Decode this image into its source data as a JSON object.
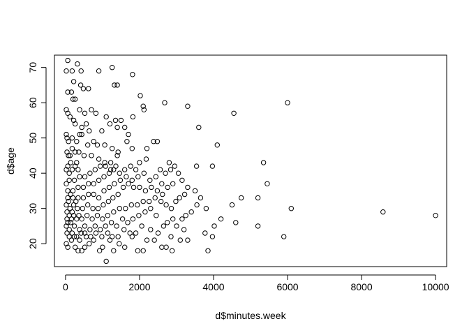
{
  "chart_data": {
    "type": "scatter",
    "title": "",
    "xlabel": "d$minutes.week",
    "ylabel": "d$age",
    "xlim": [
      -300,
      10300
    ],
    "ylim": [
      13.5,
      73.5
    ],
    "xticks": [
      0,
      2000,
      4000,
      6000,
      8000,
      10000
    ],
    "xtick_labels": [
      "0",
      "2000",
      "4000",
      "6000",
      "8000",
      "10000"
    ],
    "yticks": [
      20,
      30,
      40,
      50,
      60,
      70
    ],
    "ytick_labels": [
      "20",
      "30",
      "40",
      "50",
      "60",
      "70"
    ],
    "grid": false,
    "marker": "open-circle",
    "point_color": "#000000",
    "points": [
      [
        60,
        72
      ],
      [
        320,
        71
      ],
      [
        20,
        69
      ],
      [
        180,
        69
      ],
      [
        420,
        69
      ],
      [
        1260,
        70
      ],
      [
        1810,
        68
      ],
      [
        900,
        69
      ],
      [
        220,
        66
      ],
      [
        410,
        65
      ],
      [
        1320,
        65
      ],
      [
        1400,
        65
      ],
      [
        480,
        64
      ],
      [
        620,
        64
      ],
      [
        160,
        63
      ],
      [
        60,
        63
      ],
      [
        200,
        61
      ],
      [
        260,
        61
      ],
      [
        2020,
        62
      ],
      [
        2100,
        59
      ],
      [
        2120,
        58
      ],
      [
        2680,
        60
      ],
      [
        3300,
        59
      ],
      [
        6000,
        60
      ],
      [
        4550,
        57
      ],
      [
        3600,
        53
      ],
      [
        4100,
        48
      ],
      [
        20,
        58
      ],
      [
        60,
        57
      ],
      [
        120,
        56
      ],
      [
        380,
        58
      ],
      [
        520,
        57
      ],
      [
        700,
        58
      ],
      [
        820,
        57
      ],
      [
        1100,
        56
      ],
      [
        1350,
        55
      ],
      [
        1500,
        55
      ],
      [
        1820,
        56
      ],
      [
        220,
        55
      ],
      [
        260,
        54
      ],
      [
        440,
        53
      ],
      [
        560,
        54
      ],
      [
        640,
        52
      ],
      [
        980,
        52
      ],
      [
        1200,
        54
      ],
      [
        1400,
        53
      ],
      [
        1600,
        53
      ],
      [
        1700,
        51
      ],
      [
        20,
        51
      ],
      [
        40,
        50
      ],
      [
        80,
        49
      ],
      [
        180,
        50
      ],
      [
        300,
        49
      ],
      [
        380,
        51
      ],
      [
        440,
        51
      ],
      [
        600,
        48
      ],
      [
        760,
        49
      ],
      [
        860,
        48
      ],
      [
        1060,
        48
      ],
      [
        1420,
        46
      ],
      [
        1660,
        49
      ],
      [
        1800,
        47
      ],
      [
        2380,
        49
      ],
      [
        2480,
        49
      ],
      [
        2200,
        47
      ],
      [
        1260,
        47
      ],
      [
        40,
        46
      ],
      [
        80,
        45
      ],
      [
        120,
        45
      ],
      [
        180,
        47
      ],
      [
        260,
        46
      ],
      [
        360,
        46
      ],
      [
        500,
        45
      ],
      [
        700,
        45
      ],
      [
        900,
        44
      ],
      [
        1060,
        43
      ],
      [
        1220,
        43
      ],
      [
        1400,
        45
      ],
      [
        2000,
        43
      ],
      [
        2180,
        44
      ],
      [
        2800,
        43
      ],
      [
        3540,
        42
      ],
      [
        3970,
        42
      ],
      [
        5350,
        43
      ],
      [
        5450,
        37
      ],
      [
        4500,
        31
      ],
      [
        4750,
        33
      ],
      [
        5200,
        33
      ],
      [
        6100,
        30
      ],
      [
        4600,
        26
      ],
      [
        5200,
        25
      ],
      [
        5900,
        22
      ],
      [
        8580,
        29
      ],
      [
        10000,
        28
      ],
      [
        3850,
        18
      ],
      [
        3970,
        22
      ],
      [
        3770,
        23
      ],
      [
        4020,
        25
      ],
      [
        4200,
        27
      ],
      [
        3800,
        30
      ],
      [
        3650,
        33
      ],
      [
        3500,
        35
      ],
      [
        3400,
        29
      ],
      [
        3550,
        31
      ],
      [
        3300,
        36
      ],
      [
        3150,
        38
      ],
      [
        3050,
        40
      ],
      [
        2950,
        42
      ],
      [
        3200,
        24
      ],
      [
        3300,
        21
      ],
      [
        3100,
        21
      ],
      [
        2850,
        22
      ],
      [
        2720,
        19
      ],
      [
        2600,
        19
      ],
      [
        2880,
        18
      ],
      [
        2400,
        21
      ],
      [
        2200,
        21
      ],
      [
        2100,
        18
      ],
      [
        1950,
        18
      ],
      [
        1800,
        22
      ],
      [
        1600,
        19
      ],
      [
        1450,
        20
      ],
      [
        1300,
        18
      ],
      [
        1200,
        21
      ],
      [
        1100,
        15
      ],
      [
        1000,
        19
      ],
      [
        920,
        18
      ],
      [
        760,
        21
      ],
      [
        640,
        20
      ],
      [
        520,
        19
      ],
      [
        440,
        18
      ],
      [
        340,
        18
      ],
      [
        260,
        19
      ],
      [
        160,
        21
      ],
      [
        60,
        19
      ],
      [
        20,
        20
      ],
      [
        100,
        22
      ],
      [
        240,
        22
      ],
      [
        380,
        21
      ],
      [
        520,
        23
      ],
      [
        680,
        22
      ],
      [
        820,
        23
      ],
      [
        980,
        22
      ],
      [
        1140,
        23
      ],
      [
        1260,
        22
      ],
      [
        1420,
        22
      ],
      [
        1580,
        24
      ],
      [
        1740,
        23
      ],
      [
        1900,
        23
      ],
      [
        2060,
        25
      ],
      [
        2300,
        24
      ],
      [
        2500,
        23
      ],
      [
        2650,
        25
      ],
      [
        2750,
        26
      ],
      [
        2900,
        27
      ],
      [
        3000,
        25
      ],
      [
        3150,
        27
      ],
      [
        3250,
        28
      ],
      [
        2450,
        28
      ],
      [
        2300,
        30
      ],
      [
        2150,
        29
      ],
      [
        1980,
        28
      ],
      [
        1820,
        27
      ],
      [
        1680,
        26
      ],
      [
        1540,
        27
      ],
      [
        1380,
        25
      ],
      [
        1240,
        26
      ],
      [
        1080,
        25
      ],
      [
        940,
        24
      ],
      [
        800,
        25
      ],
      [
        660,
        24
      ],
      [
        520,
        25
      ],
      [
        380,
        24
      ],
      [
        240,
        25
      ],
      [
        100,
        24
      ],
      [
        20,
        25
      ],
      [
        60,
        26
      ],
      [
        160,
        27
      ],
      [
        300,
        27
      ],
      [
        440,
        27
      ],
      [
        580,
        28
      ],
      [
        720,
        27
      ],
      [
        860,
        28
      ],
      [
        1000,
        27
      ],
      [
        1140,
        28
      ],
      [
        1300,
        29
      ],
      [
        1460,
        30
      ],
      [
        1620,
        30
      ],
      [
        1780,
        31
      ],
      [
        1940,
        31
      ],
      [
        2100,
        32
      ],
      [
        2260,
        32
      ],
      [
        2420,
        33
      ],
      [
        2580,
        32
      ],
      [
        2720,
        31
      ],
      [
        2860,
        30
      ],
      [
        2980,
        32
      ],
      [
        3080,
        33
      ],
      [
        3220,
        34
      ],
      [
        2620,
        34
      ],
      [
        2480,
        35
      ],
      [
        2320,
        36
      ],
      [
        2160,
        35
      ],
      [
        2000,
        36
      ],
      [
        1840,
        36
      ],
      [
        1700,
        37
      ],
      [
        1560,
        36
      ],
      [
        1420,
        34
      ],
      [
        1280,
        33
      ],
      [
        1160,
        32
      ],
      [
        1020,
        31
      ],
      [
        880,
        30
      ],
      [
        740,
        30
      ],
      [
        600,
        31
      ],
      [
        460,
        30
      ],
      [
        320,
        30
      ],
      [
        180,
        29
      ],
      [
        40,
        29
      ],
      [
        20,
        31
      ],
      [
        80,
        32
      ],
      [
        200,
        33
      ],
      [
        340,
        33
      ],
      [
        480,
        33
      ],
      [
        620,
        34
      ],
      [
        760,
        34
      ],
      [
        900,
        33
      ],
      [
        1040,
        35
      ],
      [
        1180,
        36
      ],
      [
        1320,
        37
      ],
      [
        1480,
        38
      ],
      [
        1640,
        39
      ],
      [
        1800,
        38
      ],
      [
        1960,
        39
      ],
      [
        2120,
        40
      ],
      [
        2280,
        38
      ],
      [
        2440,
        39
      ],
      [
        2560,
        41
      ],
      [
        2700,
        40
      ],
      [
        2840,
        41
      ],
      [
        2900,
        37
      ],
      [
        2760,
        36
      ],
      [
        2600,
        37
      ],
      [
        1900,
        41
      ],
      [
        1760,
        42
      ],
      [
        1600,
        41
      ],
      [
        1460,
        40
      ],
      [
        1300,
        41
      ],
      [
        1180,
        40
      ],
      [
        1040,
        39
      ],
      [
        900,
        38
      ],
      [
        760,
        37
      ],
      [
        620,
        37
      ],
      [
        480,
        36
      ],
      [
        340,
        36
      ],
      [
        200,
        35
      ],
      [
        60,
        35
      ],
      [
        20,
        37
      ],
      [
        100,
        38
      ],
      [
        240,
        38
      ],
      [
        380,
        39
      ],
      [
        520,
        39
      ],
      [
        660,
        40
      ],
      [
        800,
        41
      ],
      [
        940,
        42
      ],
      [
        1080,
        42
      ],
      [
        1220,
        41
      ],
      [
        1360,
        42
      ],
      [
        100,
        40
      ],
      [
        180,
        41
      ],
      [
        260,
        42
      ],
      [
        340,
        41
      ],
      [
        20,
        41
      ],
      [
        60,
        42
      ],
      [
        140,
        43
      ],
      [
        300,
        43
      ],
      [
        60,
        33
      ],
      [
        140,
        34
      ],
      [
        220,
        31
      ],
      [
        280,
        32
      ],
      [
        120,
        30
      ],
      [
        40,
        27
      ],
      [
        140,
        26
      ],
      [
        220,
        28
      ],
      [
        360,
        28
      ],
      [
        100,
        28
      ],
      [
        40,
        23
      ],
      [
        180,
        23
      ],
      [
        300,
        22
      ],
      [
        420,
        23
      ],
      [
        560,
        22
      ]
    ]
  }
}
